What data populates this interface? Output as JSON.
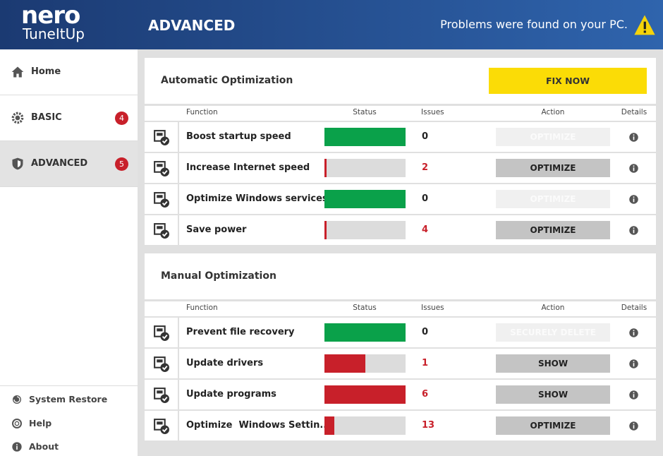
{
  "header": {
    "logo": "nero",
    "logo_sub": "TuneItUp",
    "page_title": "ADVANCED",
    "alert": "Problems were found on your PC."
  },
  "sidebar": {
    "nav": [
      {
        "label": "Home"
      },
      {
        "label": "BASIC",
        "badge": 4
      },
      {
        "label": "ADVANCED",
        "badge": 5,
        "selected": true
      }
    ],
    "footer": [
      {
        "label": "System Restore"
      },
      {
        "label": "Help"
      },
      {
        "label": "About"
      }
    ]
  },
  "sections": [
    {
      "title": "Automatic Optimization",
      "button": "FIX NOW",
      "columns": [
        "Function",
        "Status",
        "Issues",
        "Action",
        "Details"
      ],
      "rows": [
        {
          "function": "Boost startup speed",
          "status": 100,
          "status_color": "#0aa14a",
          "issues": 0,
          "action": "OPTIMIZE",
          "action_enabled": false
        },
        {
          "function": "Increase Internet speed",
          "status": 2,
          "status_color": "#c8202a",
          "issues": 2,
          "action": "OPTIMIZE",
          "action_enabled": true
        },
        {
          "function": "Optimize Windows services",
          "status": 100,
          "status_color": "#0aa14a",
          "issues": 0,
          "action": "OPTIMIZE",
          "action_enabled": false
        },
        {
          "function": "Save power",
          "status": 2,
          "status_color": "#c8202a",
          "issues": 4,
          "action": "OPTIMIZE",
          "action_enabled": true
        }
      ]
    },
    {
      "title": "Manual Optimization",
      "columns": [
        "Function",
        "Status",
        "Issues",
        "Action",
        "Details"
      ],
      "rows": [
        {
          "function": "Prevent file recovery",
          "status": 100,
          "status_color": "#0aa14a",
          "issues": 0,
          "action": "SECURELY DELETE",
          "action_enabled": false
        },
        {
          "function": "Update drivers",
          "status": 50,
          "status_color": "#c8202a",
          "issues": 1,
          "action": "SHOW",
          "action_enabled": true
        },
        {
          "function": "Update programs",
          "status": 100,
          "status_color": "#c8202a",
          "issues": 6,
          "action": "SHOW",
          "action_enabled": true
        },
        {
          "function": "Optimize  Windows Settin...",
          "status": 12,
          "status_color": "#c8202a",
          "issues": 13,
          "action": "OPTIMIZE",
          "action_enabled": true
        }
      ]
    }
  ]
}
